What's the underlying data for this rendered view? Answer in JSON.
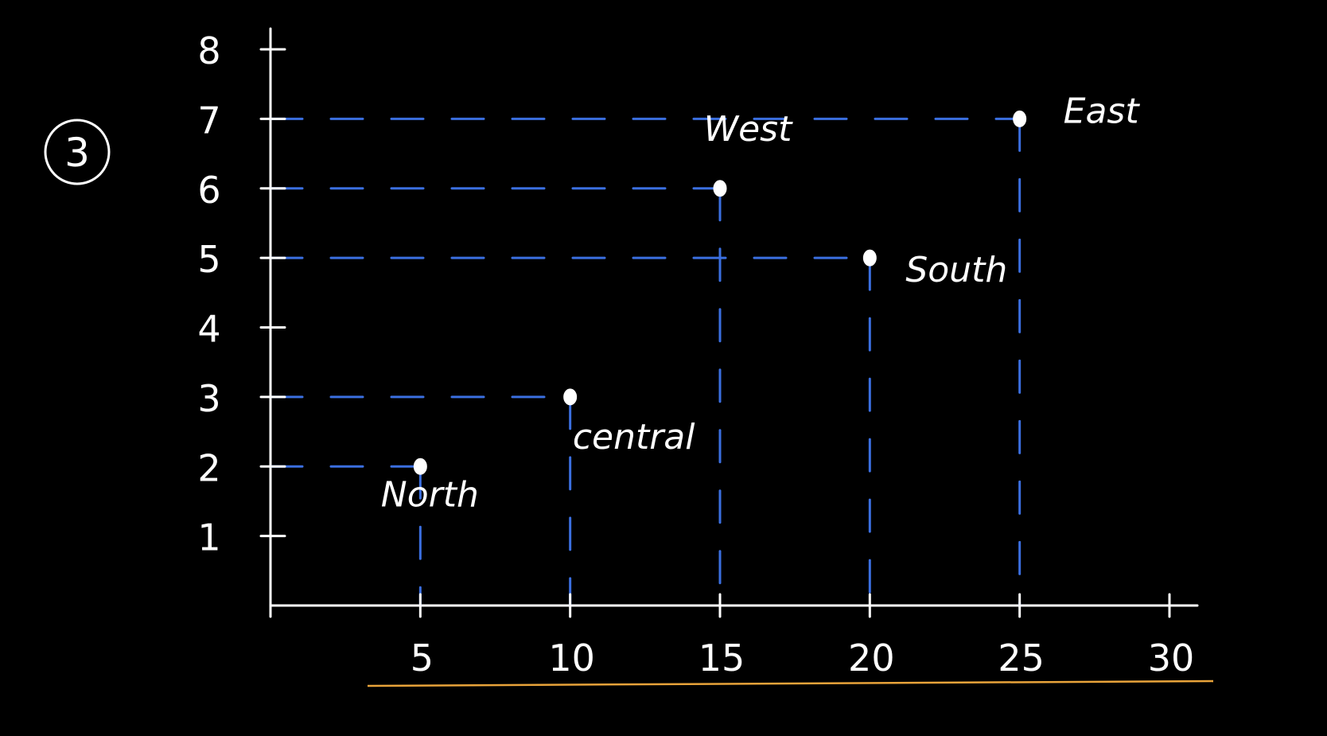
{
  "problem_number": "3",
  "chart_data": {
    "type": "scatter",
    "title": "",
    "xlabel": "",
    "ylabel": "",
    "xlim": [
      0,
      30
    ],
    "ylim": [
      0,
      8
    ],
    "x_ticks": [
      "5",
      "10",
      "15",
      "20",
      "25",
      "30"
    ],
    "y_ticks": [
      "1",
      "2",
      "3",
      "4",
      "5",
      "6",
      "7",
      "8"
    ],
    "grid": false,
    "guide_lines": "dashed blue drop lines from each point to both axes",
    "points": [
      {
        "label": "North",
        "x": 5,
        "y": 2
      },
      {
        "label": "Central",
        "x": 10,
        "y": 3
      },
      {
        "label": "West",
        "x": 15,
        "y": 6
      },
      {
        "label": "South",
        "x": 20,
        "y": 5
      },
      {
        "label": "East",
        "x": 25,
        "y": 7
      }
    ],
    "point_label_text": [
      "North",
      "central",
      "West",
      "South",
      "East"
    ]
  },
  "colors": {
    "background": "#000000",
    "ink": "#ffffff",
    "guide": "#3b6fe0",
    "underline": "#e8a33a"
  }
}
